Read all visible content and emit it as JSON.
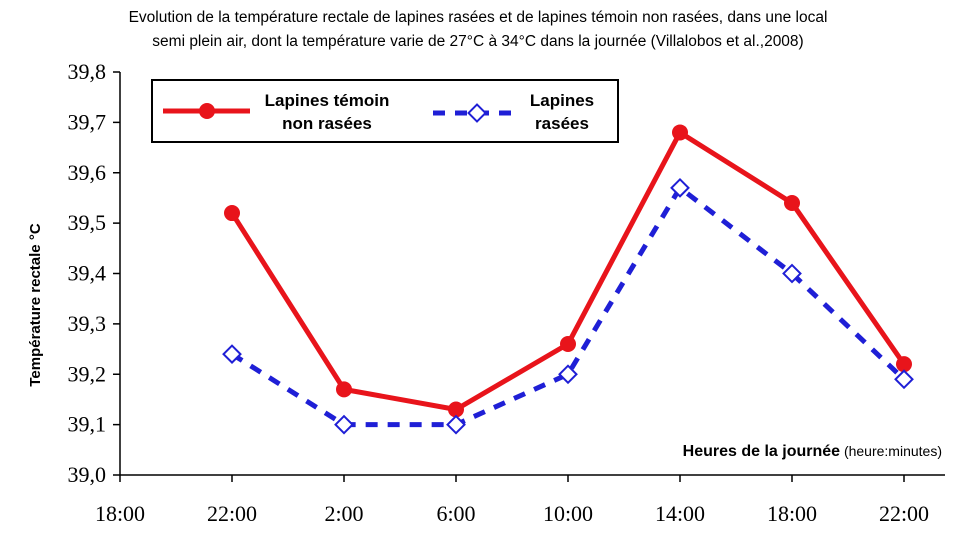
{
  "chart_data": {
    "type": "line",
    "title": [
      "Evolution de la température rectale de lapines rasées et de lapines témoin non rasées, dans une local",
      "semi plein air,  dont la température varie de 27°C à 34°C dans la journée (Villalobos et al.,2008)"
    ],
    "ylabel": "Température rectale °C",
    "xlabel": {
      "bold": "Heures de la journée",
      "normal": " (heure:minutes)"
    },
    "x_ticks": [
      "18:00",
      "22:00",
      "2:00",
      "6:00",
      "10:00",
      "14:00",
      "18:00",
      "22:00"
    ],
    "y_ticks": [
      "39,0",
      "39,1",
      "39,2",
      "39,3",
      "39,4",
      "39,5",
      "39,6",
      "39,7",
      "39,8"
    ],
    "ylim": [
      39.0,
      39.8
    ],
    "grid": false,
    "legend_position": "top-left",
    "series": [
      {
        "name": [
          "Lapines témoin",
          "non rasées"
        ],
        "color": "#e8141b",
        "style": "solid",
        "marker": "circle",
        "points": [
          {
            "x": "22:00",
            "y": 39.52
          },
          {
            "x": "2:00",
            "y": 39.17
          },
          {
            "x": "6:00",
            "y": 39.13
          },
          {
            "x": "10:00",
            "y": 39.26
          },
          {
            "x": "14:00",
            "y": 39.68
          },
          {
            "x": "18:00",
            "y": 39.54
          },
          {
            "x": "22:00",
            "y": 39.22
          }
        ]
      },
      {
        "name": [
          "Lapines",
          "rasées"
        ],
        "color": "#1f1fd6",
        "style": "dashed",
        "marker": "diamond",
        "points": [
          {
            "x": "22:00",
            "y": 39.24
          },
          {
            "x": "2:00",
            "y": 39.1
          },
          {
            "x": "6:00",
            "y": 39.1
          },
          {
            "x": "10:00",
            "y": 39.2
          },
          {
            "x": "14:00",
            "y": 39.57
          },
          {
            "x": "18:00",
            "y": 39.4
          },
          {
            "x": "22:00",
            "y": 39.19
          }
        ]
      }
    ]
  }
}
